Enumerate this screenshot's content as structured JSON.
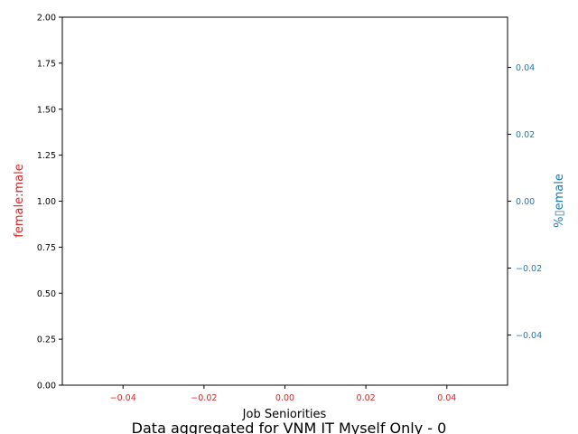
{
  "chart_data": {
    "type": "line",
    "title": "Data aggregated for VNM IT Myself Only - 0",
    "xlabel": "Job Seniorities",
    "ylabel_left": "female:male",
    "ylabel_right": "%▯emale",
    "x_ticks": [
      "−0.04",
      "−0.02",
      "0.00",
      "0.02",
      "0.04"
    ],
    "y_left_ticks": [
      "0.00",
      "0.25",
      "0.50",
      "0.75",
      "1.00",
      "1.25",
      "1.50",
      "1.75",
      "2.00"
    ],
    "y_right_ticks": [
      "−0.04",
      "−0.02",
      "0.00",
      "0.02",
      "0.04"
    ],
    "xlim": [
      -0.055,
      0.055
    ],
    "ylim_left": [
      0,
      2
    ],
    "ylim_right": [
      -0.055,
      0.055
    ],
    "series": [],
    "grid": false,
    "colors": {
      "left_axis": "#d62728",
      "right_axis": "#1f77b4",
      "frame": "#000000"
    }
  }
}
